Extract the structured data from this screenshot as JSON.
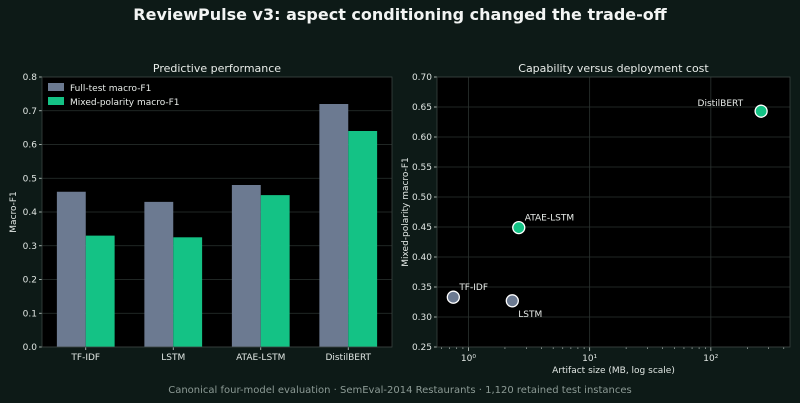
{
  "suptitle": "ReviewPulse v3: aspect conditioning changed the trade-off",
  "footnote": "Canonical four-model evaluation · SemEval-2014 Restaurants · 1,120 retained test instances",
  "colors": {
    "full": "#6c7a91",
    "mixed": "#14c285",
    "bg": "#0d1a17",
    "plot_bg": "#000000"
  },
  "chart_data": [
    {
      "type": "bar",
      "title": "Predictive performance",
      "ylabel": "Macro-F1",
      "xlabel": "",
      "categories": [
        "TF-IDF",
        "LSTM",
        "ATAE-LSTM",
        "DistilBERT"
      ],
      "ylim": [
        0,
        0.8
      ],
      "yticks": [
        0.0,
        0.1,
        0.2,
        0.3,
        0.4,
        0.5,
        0.6,
        0.7,
        0.8
      ],
      "ytick_labels": [
        "0.0",
        "0.1",
        "0.2",
        "0.3",
        "0.4",
        "0.5",
        "0.6",
        "0.7",
        "0.8"
      ],
      "legend_position": "top-left",
      "grid": true,
      "series": [
        {
          "name": "Full-test macro-F1",
          "values": [
            0.46,
            0.43,
            0.48,
            0.72
          ]
        },
        {
          "name": "Mixed-polarity macro-F1",
          "values": [
            0.33,
            0.325,
            0.45,
            0.64
          ]
        }
      ]
    },
    {
      "type": "scatter",
      "title": "Capability versus deployment cost",
      "xlabel": "Artifact size (MB, log scale)",
      "ylabel": "Mixed-polarity macro-F1",
      "xscale": "log",
      "xlim": [
        0.55,
        450
      ],
      "ylim": [
        0.25,
        0.7
      ],
      "xticks": [
        1,
        10,
        100
      ],
      "xtick_labels": [
        "10⁰",
        "10¹",
        "10²"
      ],
      "yticks": [
        0.25,
        0.3,
        0.35,
        0.4,
        0.45,
        0.5,
        0.55,
        0.6,
        0.65,
        0.7
      ],
      "ytick_labels": [
        "0.25",
        "0.30",
        "0.35",
        "0.40",
        "0.45",
        "0.50",
        "0.55",
        "0.60",
        "0.65",
        "0.70"
      ],
      "grid": true,
      "points": [
        {
          "label": "TF-IDF",
          "x": 0.75,
          "y": 0.333,
          "highlight": false
        },
        {
          "label": "LSTM",
          "x": 2.3,
          "y": 0.327,
          "highlight": false
        },
        {
          "label": "ATAE-LSTM",
          "x": 2.6,
          "y": 0.449,
          "highlight": true
        },
        {
          "label": "DistilBERT",
          "x": 260,
          "y": 0.643,
          "highlight": true
        }
      ]
    }
  ]
}
